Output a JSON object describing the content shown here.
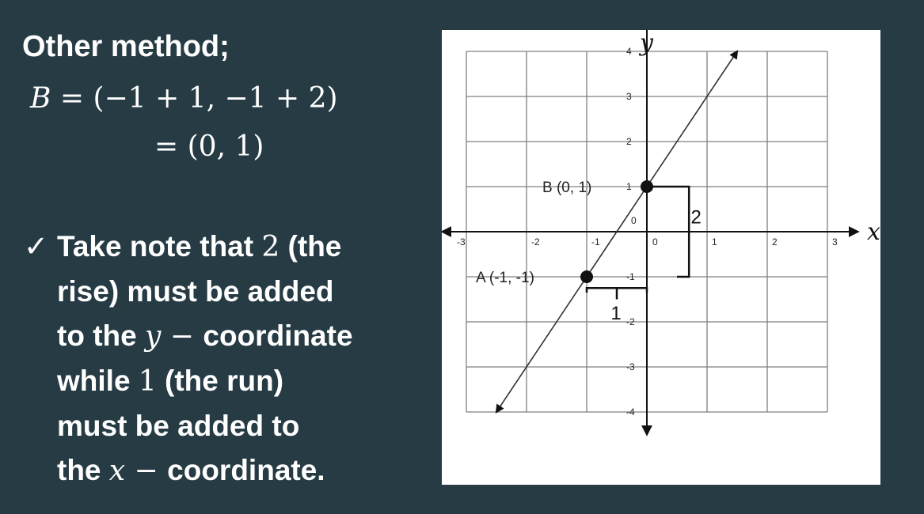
{
  "heading": "Other method;",
  "equation1": {
    "lhs": "B",
    "eq": "=",
    "rhs": "(−1 + 1, −1 + 2)"
  },
  "equation2": {
    "eq": "=",
    "rhs": "(0, 1)"
  },
  "note": {
    "check_mark": "✓",
    "line1_a": "Take note that ",
    "line1_num": "2",
    "line1_b": " (the",
    "line2": "rise) must be added",
    "line3_a": "to the ",
    "line3_var": "y",
    "line3_dash": " − ",
    "line3_b": "coordinate",
    "line4_a": "while ",
    "line4_num": "1",
    "line4_b": " (the run)",
    "line5": "must be added to",
    "line6_a": "the ",
    "line6_var": "x",
    "line6_dash": " − ",
    "line6_b": "coordinate."
  },
  "chart_data": {
    "type": "line",
    "title": "",
    "xlabel": "x",
    "ylabel": "y",
    "xlim": [
      -3,
      3
    ],
    "ylim": [
      -4,
      4
    ],
    "grid": true,
    "x_tick_labels": [
      "-3",
      "-2",
      "-1",
      "0",
      "1",
      "2",
      "3"
    ],
    "y_tick_labels": [
      "4",
      "3",
      "2",
      "1",
      "0",
      "-1",
      "-2",
      "-3",
      "-4"
    ],
    "series": [
      {
        "name": "line",
        "x": [
          -2.5,
          1.5
        ],
        "y": [
          -4,
          4
        ]
      }
    ],
    "points": [
      {
        "name": "A",
        "label": "A (-1, -1)",
        "x": -1,
        "y": -1
      },
      {
        "name": "B",
        "label": "B (0, 1)",
        "x": 0,
        "y": 1
      }
    ],
    "annotations": {
      "rise_label": "2",
      "run_label": "1"
    }
  }
}
